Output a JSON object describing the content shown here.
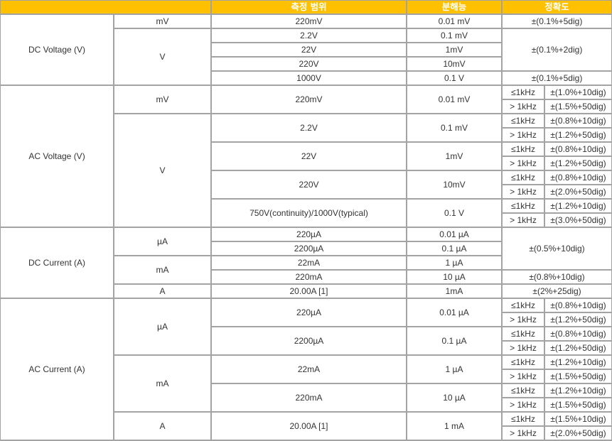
{
  "header": {
    "blank": "",
    "range": "측정 범위",
    "resolution": "분해능",
    "accuracy": "정확도"
  },
  "colors": {
    "header_bg": "#ffc000",
    "border": "#a3a3a3",
    "text": "#333333"
  },
  "rows": [
    [
      [
        "DC Voltage (V)",
        5,
        1
      ],
      [
        "mV",
        1,
        1
      ],
      [
        "220mV",
        1,
        1
      ],
      [
        "0.01 mV",
        1,
        1
      ],
      [
        "±(0.1%+5dig)",
        1,
        2
      ]
    ],
    [
      [
        "V",
        4,
        1
      ],
      [
        "2.2V",
        1,
        1
      ],
      [
        "0.1 mV",
        1,
        1
      ],
      [
        "±(0.1%+2dig)",
        3,
        2
      ]
    ],
    [
      [
        "22V",
        1,
        1
      ],
      [
        "1mV",
        1,
        1
      ]
    ],
    [
      [
        "220V",
        1,
        1
      ],
      [
        "10mV",
        1,
        1
      ]
    ],
    [
      [
        "1000V",
        1,
        1
      ],
      [
        "0.1 V",
        1,
        1
      ],
      [
        "±(0.1%+5dig)",
        1,
        2
      ]
    ],
    [
      [
        "AC Voltage (V)",
        10,
        1
      ],
      [
        "mV",
        2,
        1
      ],
      [
        "220mV",
        2,
        1
      ],
      [
        "0.01 mV",
        2,
        1
      ],
      [
        "≤1kHz",
        1,
        1
      ],
      [
        "±(1.0%+10dig)",
        1,
        1
      ]
    ],
    [
      [
        "> 1kHz",
        1,
        1
      ],
      [
        "±(1.5%+50dig)",
        1,
        1
      ]
    ],
    [
      [
        "V",
        8,
        1
      ],
      [
        "2.2V",
        2,
        1
      ],
      [
        "0.1 mV",
        2,
        1
      ],
      [
        "≤1kHz",
        1,
        1
      ],
      [
        "±(0.8%+10dig)",
        1,
        1
      ]
    ],
    [
      [
        "> 1kHz",
        1,
        1
      ],
      [
        "±(1.2%+50dig)",
        1,
        1
      ]
    ],
    [
      [
        "22V",
        2,
        1
      ],
      [
        "1mV",
        2,
        1
      ],
      [
        "≤1kHz",
        1,
        1
      ],
      [
        "±(0.8%+10dig)",
        1,
        1
      ]
    ],
    [
      [
        "> 1kHz",
        1,
        1
      ],
      [
        "±(1.2%+50dig)",
        1,
        1
      ]
    ],
    [
      [
        "220V",
        2,
        1
      ],
      [
        "10mV",
        2,
        1
      ],
      [
        "≤1kHz",
        1,
        1
      ],
      [
        "±(0.8%+10dig)",
        1,
        1
      ]
    ],
    [
      [
        "> 1kHz",
        1,
        1
      ],
      [
        "±(2.0%+50dig)",
        1,
        1
      ]
    ],
    [
      [
        "750V(continuity)/1000V(typical)",
        2,
        1
      ],
      [
        "0.1 V",
        2,
        1
      ],
      [
        "≤1kHz",
        1,
        1
      ],
      [
        "±(1.2%+10dig)",
        1,
        1
      ]
    ],
    [
      [
        "> 1kHz",
        1,
        1
      ],
      [
        "±(3.0%+50dig)",
        1,
        1
      ]
    ],
    [
      [
        "DC Current (A)",
        5,
        1
      ],
      [
        "µA",
        2,
        1
      ],
      [
        "220µA",
        1,
        1
      ],
      [
        "0.01 µA",
        1,
        1
      ],
      [
        "±(0.5%+10dig)",
        3,
        2
      ]
    ],
    [
      [
        "2200µA",
        1,
        1
      ],
      [
        "0.1 µA",
        1,
        1
      ]
    ],
    [
      [
        "mA",
        2,
        1
      ],
      [
        "22mA",
        1,
        1
      ],
      [
        "1 µA",
        1,
        1
      ]
    ],
    [
      [
        "220mA",
        1,
        1
      ],
      [
        "10 µA",
        1,
        1
      ],
      [
        "±(0.8%+10dig)",
        1,
        2
      ]
    ],
    [
      [
        "A",
        1,
        1
      ],
      [
        "20.00A [1]",
        1,
        1
      ],
      [
        "1mA",
        1,
        1
      ],
      [
        "±(2%+25dig)",
        1,
        2
      ]
    ],
    [
      [
        "AC Current (A)",
        10,
        1
      ],
      [
        "µA",
        4,
        1
      ],
      [
        "220µA",
        2,
        1
      ],
      [
        "0.01 µA",
        2,
        1
      ],
      [
        "≤1kHz",
        1,
        1
      ],
      [
        "±(0.8%+10dig)",
        1,
        1
      ]
    ],
    [
      [
        "> 1kHz",
        1,
        1
      ],
      [
        "±(1.2%+50dig)",
        1,
        1
      ]
    ],
    [
      [
        "2200µA",
        2,
        1
      ],
      [
        "0.1 µA",
        2,
        1
      ],
      [
        "≤1kHz",
        1,
        1
      ],
      [
        "±(0.8%+10dig)",
        1,
        1
      ]
    ],
    [
      [
        "> 1kHz",
        1,
        1
      ],
      [
        "±(1.2%+50dig)",
        1,
        1
      ]
    ],
    [
      [
        "mA",
        4,
        1
      ],
      [
        "22mA",
        2,
        1
      ],
      [
        "1 µA",
        2,
        1
      ],
      [
        "≤1kHz",
        1,
        1
      ],
      [
        "±(1.2%+10dig)",
        1,
        1
      ]
    ],
    [
      [
        "> 1kHz",
        1,
        1
      ],
      [
        "±(1.5%+50dig)",
        1,
        1
      ]
    ],
    [
      [
        "220mA",
        2,
        1
      ],
      [
        "10 µA",
        2,
        1
      ],
      [
        "≤1kHz",
        1,
        1
      ],
      [
        "±(1.2%+10dig)",
        1,
        1
      ]
    ],
    [
      [
        "> 1kHz",
        1,
        1
      ],
      [
        "±(1.5%+50dig)",
        1,
        1
      ]
    ],
    [
      [
        "A",
        2,
        1
      ],
      [
        "20.00A [1]",
        2,
        1
      ],
      [
        "1 mA",
        2,
        1
      ],
      [
        "≤1kHz",
        1,
        1
      ],
      [
        "±(1.5%+10dig)",
        1,
        1
      ]
    ],
    [
      [
        "> 1kHz",
        1,
        1
      ],
      [
        "±(2.0%+50dig)",
        1,
        1
      ]
    ]
  ]
}
